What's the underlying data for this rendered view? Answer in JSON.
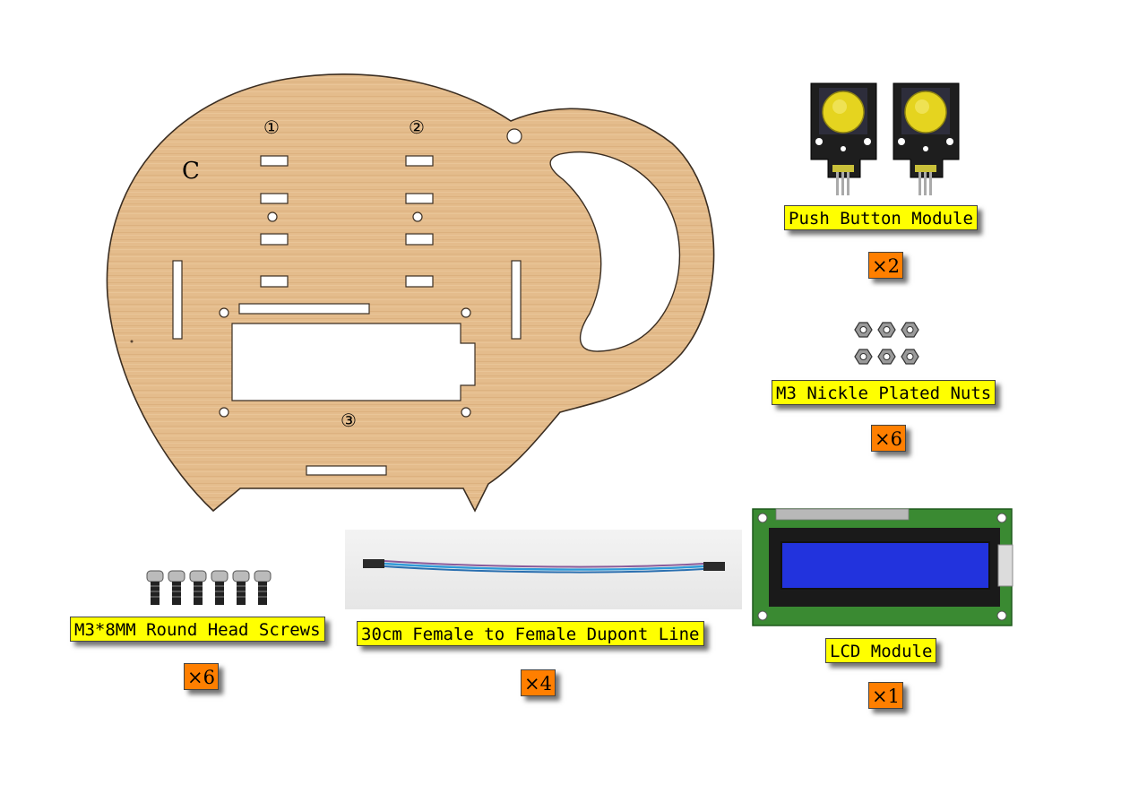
{
  "plate": {
    "letter": "C",
    "marker_1": "①",
    "marker_2": "②",
    "marker_3": "③",
    "color_wood": "#e2b989",
    "color_edge": "#3b2e22"
  },
  "parts": {
    "push_button": {
      "name": "Push Button Module",
      "qty": "×2"
    },
    "nuts": {
      "name": "M3 Nickle Plated Nuts",
      "qty": "×6"
    },
    "lcd": {
      "name": "LCD Module",
      "qty": "×1"
    },
    "screws": {
      "name": "M3*8MM Round Head Screws",
      "qty": "×6"
    },
    "dupont": {
      "name": "30cm Female to Female Dupont Line",
      "qty": "×4"
    }
  },
  "colors": {
    "label_bg": "#ffff00",
    "qty_bg": "#ff7f00",
    "lcd_screen": "#2233dd",
    "pcb_green": "#3a8a32",
    "button_cap": "#e2d21e"
  }
}
